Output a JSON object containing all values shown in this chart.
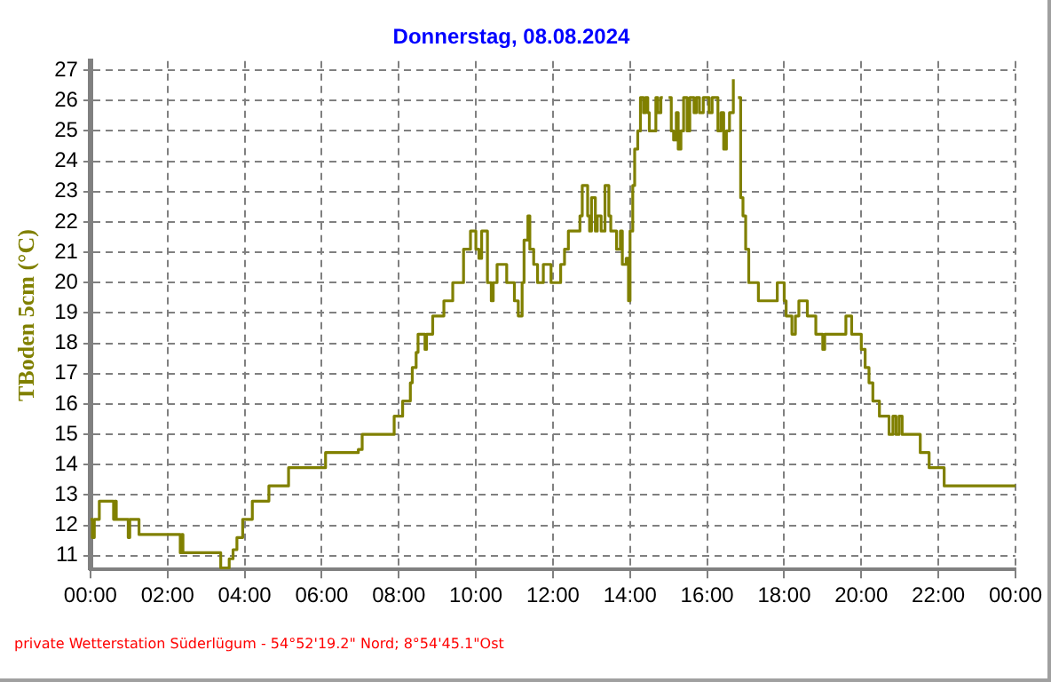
{
  "chart_data": {
    "type": "step",
    "title": "Donnerstag, 08.08.2024",
    "ylabel": "TBoden 5cm (°C)",
    "annotations": [
      "private Wetterstation Süderlügum - 54°52'19.2\" Nord; 8°54'45.1\"Ost"
    ],
    "x": [
      0,
      0.05,
      0.1,
      0.23,
      0.6,
      0.63,
      0.67,
      0.72,
      0.98,
      1.02,
      1.26,
      2.33,
      2.37,
      2.4,
      3.38,
      3.6,
      3.7,
      3.8,
      3.95,
      4.2,
      4.63,
      5.14,
      6.1,
      6.95,
      7.05,
      7.88,
      8.1,
      8.3,
      8.35,
      8.45,
      8.5,
      8.68,
      8.72,
      8.88,
      9.17,
      9.4,
      9.68,
      9.86,
      10.0,
      10.08,
      10.15,
      10.3,
      10.4,
      10.45,
      10.55,
      10.8,
      11.0,
      11.1,
      11.2,
      11.25,
      11.35,
      11.4,
      11.5,
      11.6,
      11.75,
      11.95,
      12.2,
      12.3,
      12.35,
      12.4,
      12.7,
      12.76,
      12.9,
      12.95,
      13.0,
      13.1,
      13.15,
      13.25,
      13.35,
      13.45,
      13.5,
      13.65,
      13.75,
      13.8,
      13.9,
      13.96,
      14.0,
      14.07,
      14.12,
      14.2,
      14.27,
      14.35,
      14.4,
      14.46,
      14.5,
      14.67,
      14.72,
      14.8,
      14.85,
      14.97,
      15.0,
      15.07,
      15.13,
      15.2,
      15.25,
      15.32,
      15.39,
      15.48,
      15.55,
      15.66,
      15.72,
      15.8,
      15.9,
      16.05,
      16.13,
      16.28,
      16.36,
      16.43,
      16.5,
      16.58,
      16.68,
      16.74,
      16.8,
      16.87,
      16.93,
      17.0,
      17.08,
      17.33,
      17.82,
      18.0,
      18.05,
      18.13,
      18.2,
      18.29,
      18.38,
      18.44,
      18.6,
      18.82,
      19.0,
      19.05,
      19.6,
      19.65,
      19.75,
      19.82,
      20.0,
      20.1,
      20.2,
      20.3,
      20.47,
      20.72,
      20.82,
      20.9,
      20.98,
      21.06,
      21.53,
      21.76,
      22.15,
      24.0
    ],
    "series": [
      {
        "color": "#808000",
        "values": [
          12.2,
          11.6,
          12.2,
          12.8,
          12.2,
          12.8,
          12.2,
          12.2,
          11.6,
          12.2,
          11.7,
          11.1,
          11.7,
          11.1,
          10.6,
          10.9,
          11.2,
          11.6,
          12.2,
          12.8,
          13.3,
          13.9,
          14.4,
          14.5,
          15.0,
          15.6,
          16.1,
          16.7,
          17.2,
          17.7,
          18.3,
          17.8,
          18.3,
          18.9,
          19.4,
          20.0,
          21.1,
          21.7,
          21.1,
          20.8,
          21.7,
          20.0,
          19.4,
          20.0,
          20.6,
          20.0,
          19.4,
          18.9,
          20.0,
          21.4,
          22.2,
          21.1,
          20.6,
          20.0,
          20.6,
          20.0,
          20.6,
          21.1,
          21.1,
          21.7,
          22.2,
          23.2,
          22.2,
          21.7,
          22.8,
          21.7,
          22.2,
          21.7,
          23.2,
          22.2,
          21.7,
          21.1,
          21.7,
          20.6,
          20.8,
          19.4,
          21.7,
          23.2,
          24.4,
          25.0,
          26.1,
          25.6,
          26.1,
          25.6,
          25.0,
          26.1,
          25.6,
          26.1,
          26.1,
          null,
          26.1,
          25.0,
          24.7,
          25.6,
          24.4,
          25.0,
          26.1,
          25.0,
          26.1,
          25.6,
          26.1,
          25.6,
          26.1,
          25.6,
          26.1,
          25.0,
          25.6,
          24.4,
          25.0,
          25.6,
          26.7,
          null,
          26.1,
          22.8,
          22.2,
          21.1,
          20.0,
          19.4,
          20.0,
          19.4,
          18.9,
          18.9,
          18.3,
          18.9,
          19.4,
          19.4,
          18.9,
          18.3,
          17.8,
          18.3,
          18.9,
          18.9,
          18.3,
          18.3,
          17.8,
          17.2,
          16.7,
          16.1,
          15.6,
          15.0,
          15.6,
          15.0,
          15.6,
          15.0,
          14.4,
          13.9,
          13.3,
          13.3
        ]
      }
    ],
    "xlim": [
      0,
      24
    ],
    "xticks": [
      {
        "value": 0,
        "label": "00:00"
      },
      {
        "value": 2,
        "label": "02:00"
      },
      {
        "value": 4,
        "label": "04:00"
      },
      {
        "value": 6,
        "label": "06:00"
      },
      {
        "value": 8,
        "label": "08:00"
      },
      {
        "value": 10,
        "label": "10:00"
      },
      {
        "value": 12,
        "label": "12:00"
      },
      {
        "value": 14,
        "label": "14:00"
      },
      {
        "value": 16,
        "label": "16:00"
      },
      {
        "value": 18,
        "label": "18:00"
      },
      {
        "value": 20,
        "label": "20:00"
      },
      {
        "value": 22,
        "label": "22:00"
      },
      {
        "value": 24,
        "label": "00:00"
      }
    ],
    "ylim": [
      10.55,
      27.3
    ],
    "yticks": [
      11,
      12,
      13,
      14,
      15,
      16,
      17,
      18,
      19,
      20,
      21,
      22,
      23,
      24,
      25,
      26,
      27
    ],
    "grid": true,
    "marker": "none",
    "line_style": "solid",
    "legend": false
  }
}
